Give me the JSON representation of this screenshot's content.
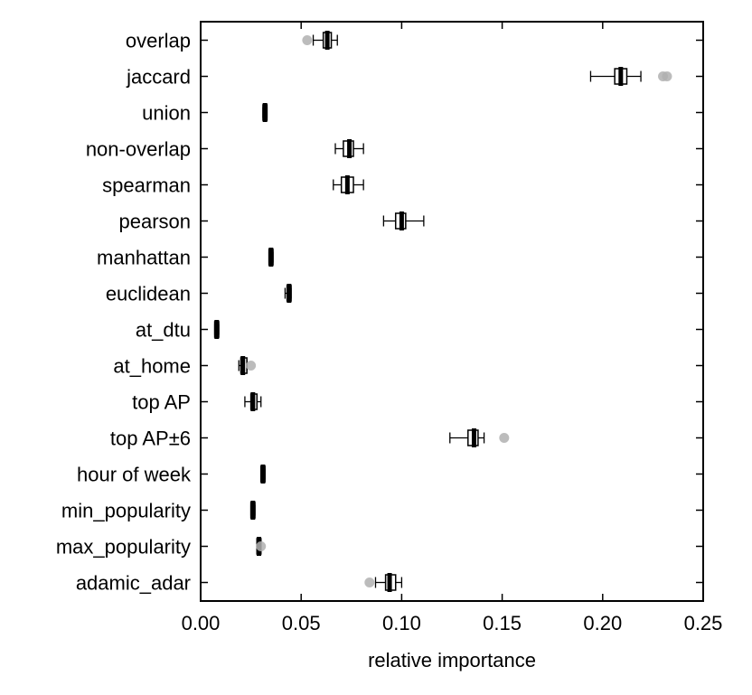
{
  "chart_data": {
    "type": "boxplot",
    "orientation": "horizontal",
    "xlabel": "relative importance",
    "xlim": [
      0.0,
      0.25
    ],
    "x_ticks": [
      "0.00",
      "0.05",
      "0.10",
      "0.15",
      "0.20",
      "0.25"
    ],
    "grid": false,
    "legend": "none",
    "colors": {
      "box": "#000000",
      "outlier": "#b0b0b0"
    },
    "series": [
      {
        "name": "overlap",
        "whislo": 0.056,
        "q1": 0.061,
        "med": 0.063,
        "q3": 0.065,
        "whishi": 0.068,
        "fliers": [
          0.053
        ]
      },
      {
        "name": "jaccard",
        "whislo": 0.194,
        "q1": 0.206,
        "med": 0.209,
        "q3": 0.212,
        "whishi": 0.219,
        "fliers": [
          0.23,
          0.232
        ]
      },
      {
        "name": "union",
        "whislo": 0.031,
        "q1": 0.031,
        "med": 0.032,
        "q3": 0.033,
        "whishi": 0.033,
        "fliers": []
      },
      {
        "name": "non-overlap",
        "whislo": 0.067,
        "q1": 0.071,
        "med": 0.074,
        "q3": 0.076,
        "whishi": 0.081,
        "fliers": []
      },
      {
        "name": "spearman",
        "whislo": 0.066,
        "q1": 0.07,
        "med": 0.073,
        "q3": 0.076,
        "whishi": 0.081,
        "fliers": []
      },
      {
        "name": "pearson",
        "whislo": 0.091,
        "q1": 0.097,
        "med": 0.1,
        "q3": 0.102,
        "whishi": 0.111,
        "fliers": []
      },
      {
        "name": "manhattan",
        "whislo": 0.034,
        "q1": 0.034,
        "med": 0.035,
        "q3": 0.036,
        "whishi": 0.036,
        "fliers": []
      },
      {
        "name": "euclidean",
        "whislo": 0.042,
        "q1": 0.043,
        "med": 0.044,
        "q3": 0.045,
        "whishi": 0.045,
        "fliers": []
      },
      {
        "name": "at_dtu",
        "whislo": 0.007,
        "q1": 0.007,
        "med": 0.008,
        "q3": 0.009,
        "whishi": 0.009,
        "fliers": []
      },
      {
        "name": "at_home",
        "whislo": 0.019,
        "q1": 0.02,
        "med": 0.021,
        "q3": 0.023,
        "whishi": 0.023,
        "fliers": [
          0.025
        ]
      },
      {
        "name": "top AP",
        "whislo": 0.022,
        "q1": 0.025,
        "med": 0.026,
        "q3": 0.028,
        "whishi": 0.03,
        "fliers": []
      },
      {
        "name": "top AP±6",
        "whislo": 0.124,
        "q1": 0.133,
        "med": 0.136,
        "q3": 0.138,
        "whishi": 0.141,
        "fliers": [
          0.151
        ]
      },
      {
        "name": "hour of week",
        "whislo": 0.03,
        "q1": 0.03,
        "med": 0.031,
        "q3": 0.032,
        "whishi": 0.032,
        "fliers": []
      },
      {
        "name": "min_popularity",
        "whislo": 0.025,
        "q1": 0.025,
        "med": 0.026,
        "q3": 0.027,
        "whishi": 0.027,
        "fliers": []
      },
      {
        "name": "max_popularity",
        "whislo": 0.028,
        "q1": 0.028,
        "med": 0.029,
        "q3": 0.03,
        "whishi": 0.03,
        "fliers": [
          0.03
        ]
      },
      {
        "name": "adamic_adar",
        "whislo": 0.087,
        "q1": 0.092,
        "med": 0.094,
        "q3": 0.097,
        "whishi": 0.1,
        "fliers": [
          0.084
        ]
      }
    ]
  }
}
